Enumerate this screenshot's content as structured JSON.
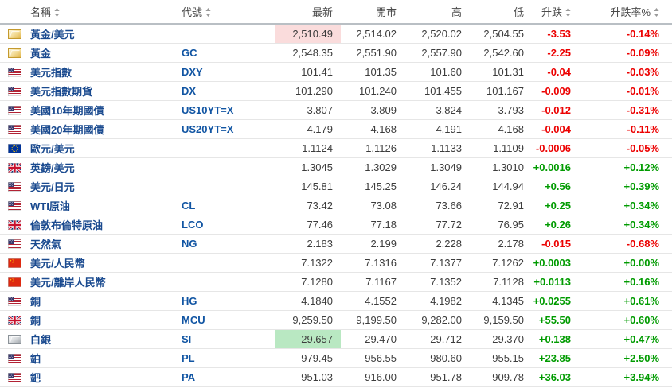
{
  "table": {
    "columns": [
      {
        "label": "名稱",
        "sortable": true
      },
      {
        "label": "代號",
        "sortable": true
      },
      {
        "label": "最新",
        "sortable": false
      },
      {
        "label": "開市",
        "sortable": false
      },
      {
        "label": "高",
        "sortable": false
      },
      {
        "label": "低",
        "sortable": false
      },
      {
        "label": "升跌",
        "sortable": true
      },
      {
        "label": "升跌率%",
        "sortable": true
      }
    ],
    "rows": [
      {
        "icon": "gold-bar-icon",
        "name": "黃金/美元",
        "code": "",
        "last": "2,510.49",
        "open": "2,514.02",
        "high": "2,520.02",
        "low": "2,504.55",
        "change": "-3.53",
        "change_pct": "-0.14%",
        "last_flash": "down"
      },
      {
        "icon": "gold-bar-icon",
        "name": "黃金",
        "code": "GC",
        "last": "2,548.35",
        "open": "2,551.90",
        "high": "2,557.90",
        "low": "2,542.60",
        "change": "-2.25",
        "change_pct": "-0.09%",
        "last_flash": ""
      },
      {
        "icon": "us-flag-icon",
        "name": "美元指數",
        "code": "DXY",
        "last": "101.41",
        "open": "101.35",
        "high": "101.60",
        "low": "101.31",
        "change": "-0.04",
        "change_pct": "-0.03%",
        "last_flash": ""
      },
      {
        "icon": "us-flag-icon",
        "name": "美元指數期貨",
        "code": "DX",
        "last": "101.290",
        "open": "101.240",
        "high": "101.455",
        "low": "101.167",
        "change": "-0.009",
        "change_pct": "-0.01%",
        "last_flash": ""
      },
      {
        "icon": "us-flag-icon",
        "name": "美國10年期國債",
        "code": "US10YT=X",
        "last": "3.807",
        "open": "3.809",
        "high": "3.824",
        "low": "3.793",
        "change": "-0.012",
        "change_pct": "-0.31%",
        "last_flash": ""
      },
      {
        "icon": "us-flag-icon",
        "name": "美國20年期國債",
        "code": "US20YT=X",
        "last": "4.179",
        "open": "4.168",
        "high": "4.191",
        "low": "4.168",
        "change": "-0.004",
        "change_pct": "-0.11%",
        "last_flash": ""
      },
      {
        "icon": "eu-flag-icon",
        "name": "歐元/美元",
        "code": "",
        "last": "1.1124",
        "open": "1.1126",
        "high": "1.1133",
        "low": "1.1109",
        "change": "-0.0006",
        "change_pct": "-0.05%",
        "last_flash": ""
      },
      {
        "icon": "uk-flag-icon",
        "name": "英鎊/美元",
        "code": "",
        "last": "1.3045",
        "open": "1.3029",
        "high": "1.3049",
        "low": "1.3010",
        "change": "+0.0016",
        "change_pct": "+0.12%",
        "last_flash": ""
      },
      {
        "icon": "us-flag-icon",
        "name": "美元/日元",
        "code": "",
        "last": "145.81",
        "open": "145.25",
        "high": "146.24",
        "low": "144.94",
        "change": "+0.56",
        "change_pct": "+0.39%",
        "last_flash": ""
      },
      {
        "icon": "us-flag-icon",
        "name": "WTI原油",
        "code": "CL",
        "last": "73.42",
        "open": "73.08",
        "high": "73.66",
        "low": "72.91",
        "change": "+0.25",
        "change_pct": "+0.34%",
        "last_flash": ""
      },
      {
        "icon": "uk-flag-icon",
        "name": "倫敦布倫特原油",
        "code": "LCO",
        "last": "77.46",
        "open": "77.18",
        "high": "77.72",
        "low": "76.95",
        "change": "+0.26",
        "change_pct": "+0.34%",
        "last_flash": ""
      },
      {
        "icon": "us-flag-icon",
        "name": "天然氣",
        "code": "NG",
        "last": "2.183",
        "open": "2.199",
        "high": "2.228",
        "low": "2.178",
        "change": "-0.015",
        "change_pct": "-0.68%",
        "last_flash": ""
      },
      {
        "icon": "cn-flag-icon",
        "name": "美元/人民幣",
        "code": "",
        "last": "7.1322",
        "open": "7.1316",
        "high": "7.1377",
        "low": "7.1262",
        "change": "+0.0003",
        "change_pct": "+0.00%",
        "last_flash": ""
      },
      {
        "icon": "cn-flag-icon",
        "name": "美元/離岸人民幣",
        "code": "",
        "last": "7.1280",
        "open": "7.1167",
        "high": "7.1352",
        "low": "7.1128",
        "change": "+0.0113",
        "change_pct": "+0.16%",
        "last_flash": ""
      },
      {
        "icon": "us-flag-icon",
        "name": "銅",
        "code": "HG",
        "last": "4.1840",
        "open": "4.1552",
        "high": "4.1982",
        "low": "4.1345",
        "change": "+0.0255",
        "change_pct": "+0.61%",
        "last_flash": ""
      },
      {
        "icon": "uk-flag-icon",
        "name": "銅",
        "code": "MCU",
        "last": "9,259.50",
        "open": "9,199.50",
        "high": "9,282.00",
        "low": "9,159.50",
        "change": "+55.50",
        "change_pct": "+0.60%",
        "last_flash": ""
      },
      {
        "icon": "silver-bar-icon",
        "name": "白銀",
        "code": "SI",
        "last": "29.657",
        "open": "29.470",
        "high": "29.712",
        "low": "29.370",
        "change": "+0.138",
        "change_pct": "+0.47%",
        "last_flash": "up"
      },
      {
        "icon": "us-flag-icon",
        "name": "鉑",
        "code": "PL",
        "last": "979.45",
        "open": "956.55",
        "high": "980.60",
        "low": "955.15",
        "change": "+23.85",
        "change_pct": "+2.50%",
        "last_flash": ""
      },
      {
        "icon": "us-flag-icon",
        "name": "鈀",
        "code": "PA",
        "last": "951.03",
        "open": "916.00",
        "high": "951.78",
        "low": "909.78",
        "change": "+36.03",
        "change_pct": "+3.94%",
        "last_flash": ""
      }
    ]
  },
  "colors": {
    "positive": "#009b00",
    "negative": "#ec0000",
    "flash_up_bg": "#b9e8c2",
    "flash_down_bg": "#fadcdc",
    "name_link": "#1a4a8f",
    "code_link": "#1155a3"
  }
}
